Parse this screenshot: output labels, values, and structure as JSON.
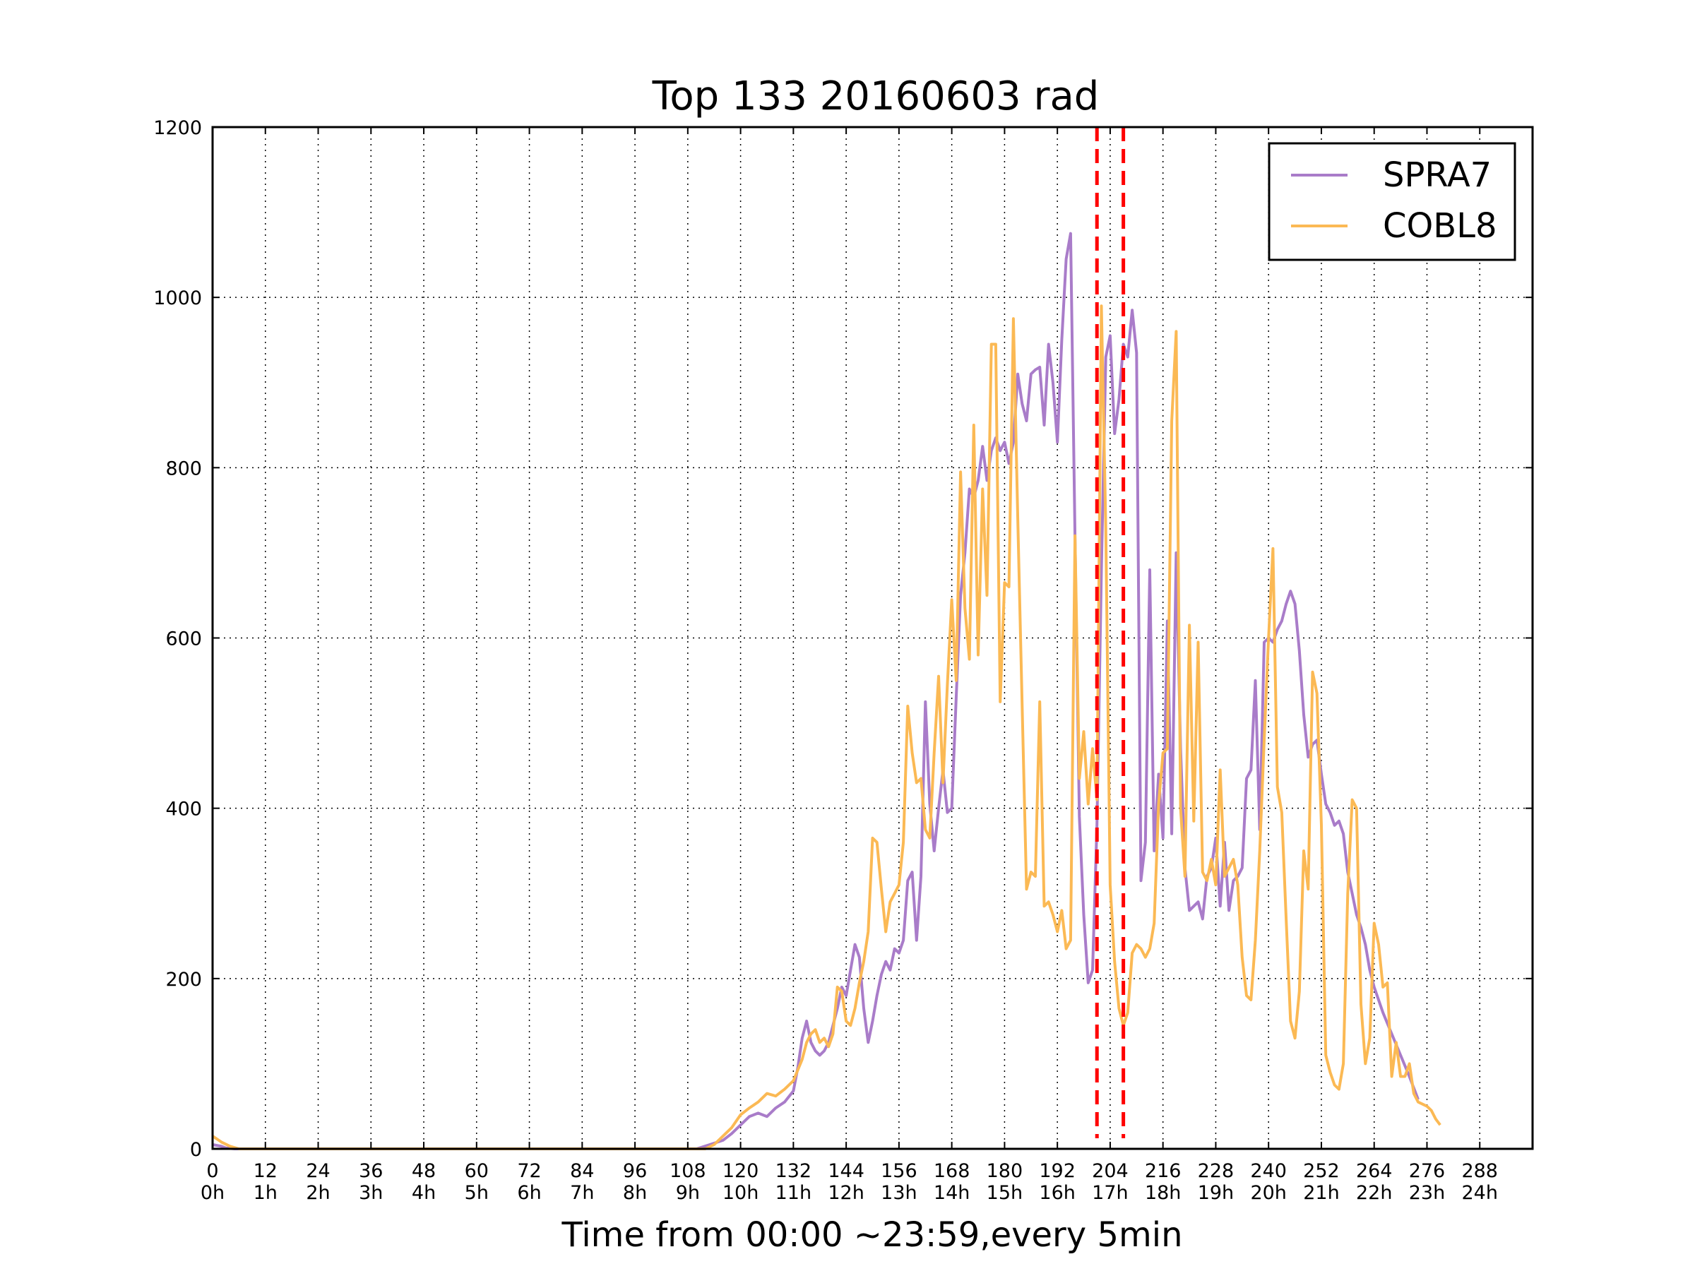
{
  "chart_data": {
    "type": "line",
    "title": "Top 133 20160603 rad",
    "xlabel": "Time from 00:00 ~23:59,every 5min",
    "ylabel": "",
    "xlim": [
      0,
      300
    ],
    "ylim": [
      0,
      1200
    ],
    "grid": true,
    "legend_position": "top-right",
    "x_ticks": [
      0,
      12,
      24,
      36,
      48,
      60,
      72,
      84,
      96,
      108,
      120,
      132,
      144,
      156,
      168,
      180,
      192,
      204,
      216,
      228,
      240,
      252,
      264,
      276,
      288
    ],
    "x_tick_labels": [
      "0",
      "12",
      "24",
      "36",
      "48",
      "60",
      "72",
      "84",
      "96",
      "108",
      "120",
      "132",
      "144",
      "156",
      "168",
      "180",
      "192",
      "204",
      "216",
      "228",
      "240",
      "252",
      "264",
      "276",
      "288"
    ],
    "x_tick_sublabels": [
      "0h",
      "1h",
      "2h",
      "3h",
      "4h",
      "5h",
      "6h",
      "7h",
      "8h",
      "9h",
      "10h",
      "11h",
      "12h",
      "13h",
      "14h",
      "15h",
      "16h",
      "17h",
      "18h",
      "19h",
      "20h",
      "21h",
      "22h",
      "23h",
      "24h"
    ],
    "y_ticks": [
      0,
      200,
      400,
      600,
      800,
      1000,
      1200
    ],
    "y_tick_labels": [
      "0",
      "200",
      "400",
      "600",
      "800",
      "1000",
      "1200"
    ],
    "vlines": [
      {
        "x": 201,
        "color": "#ff0000"
      },
      {
        "x": 207,
        "color": "#ff0000"
      }
    ],
    "series": [
      {
        "name": "SPRA7",
        "color": "#a97cc9",
        "points": [
          [
            0,
            5
          ],
          [
            2,
            3
          ],
          [
            3,
            1
          ],
          [
            5,
            0
          ],
          [
            110,
            0
          ],
          [
            113,
            5
          ],
          [
            116,
            10
          ],
          [
            118,
            18
          ],
          [
            120,
            28
          ],
          [
            122,
            38
          ],
          [
            124,
            42
          ],
          [
            126,
            38
          ],
          [
            128,
            48
          ],
          [
            130,
            55
          ],
          [
            132,
            68
          ],
          [
            133,
            95
          ],
          [
            134,
            130
          ],
          [
            135,
            150
          ],
          [
            136,
            125
          ],
          [
            137,
            115
          ],
          [
            138,
            110
          ],
          [
            139,
            115
          ],
          [
            140,
            125
          ],
          [
            141,
            145
          ],
          [
            142,
            165
          ],
          [
            143,
            190
          ],
          [
            144,
            180
          ],
          [
            145,
            210
          ],
          [
            146,
            240
          ],
          [
            147,
            225
          ],
          [
            148,
            165
          ],
          [
            149,
            125
          ],
          [
            150,
            150
          ],
          [
            151,
            180
          ],
          [
            152,
            205
          ],
          [
            153,
            220
          ],
          [
            154,
            210
          ],
          [
            155,
            235
          ],
          [
            156,
            230
          ],
          [
            157,
            245
          ],
          [
            158,
            315
          ],
          [
            159,
            325
          ],
          [
            160,
            245
          ],
          [
            161,
            320
          ],
          [
            162,
            525
          ],
          [
            163,
            405
          ],
          [
            164,
            350
          ],
          [
            165,
            400
          ],
          [
            166,
            445
          ],
          [
            167,
            395
          ],
          [
            168,
            400
          ],
          [
            169,
            530
          ],
          [
            170,
            650
          ],
          [
            171,
            700
          ],
          [
            172,
            775
          ],
          [
            173,
            765
          ],
          [
            174,
            785
          ],
          [
            175,
            825
          ],
          [
            176,
            785
          ],
          [
            177,
            820
          ],
          [
            178,
            835
          ],
          [
            179,
            820
          ],
          [
            180,
            830
          ],
          [
            181,
            805
          ],
          [
            182,
            830
          ],
          [
            183,
            910
          ],
          [
            184,
            875
          ],
          [
            185,
            855
          ],
          [
            186,
            910
          ],
          [
            187,
            915
          ],
          [
            188,
            918
          ],
          [
            189,
            850
          ],
          [
            190,
            945
          ],
          [
            191,
            900
          ],
          [
            192,
            830
          ],
          [
            193,
            950
          ],
          [
            194,
            1045
          ],
          [
            195,
            1075
          ],
          [
            196,
            720
          ],
          [
            197,
            390
          ],
          [
            198,
            275
          ],
          [
            199,
            195
          ],
          [
            200,
            210
          ],
          [
            201,
            380
          ],
          [
            202,
            680
          ],
          [
            203,
            930
          ],
          [
            204,
            955
          ],
          [
            205,
            840
          ],
          [
            206,
            880
          ],
          [
            207,
            945
          ],
          [
            208,
            930
          ],
          [
            209,
            985
          ],
          [
            210,
            935
          ],
          [
            211,
            315
          ],
          [
            212,
            360
          ],
          [
            213,
            680
          ],
          [
            214,
            350
          ],
          [
            215,
            440
          ],
          [
            216,
            365
          ],
          [
            217,
            620
          ],
          [
            218,
            370
          ],
          [
            219,
            700
          ],
          [
            220,
            470
          ],
          [
            221,
            330
          ],
          [
            222,
            280
          ],
          [
            223,
            285
          ],
          [
            224,
            290
          ],
          [
            225,
            270
          ],
          [
            226,
            320
          ],
          [
            227,
            330
          ],
          [
            228,
            365
          ],
          [
            229,
            285
          ],
          [
            230,
            360
          ],
          [
            231,
            280
          ],
          [
            232,
            315
          ],
          [
            233,
            320
          ],
          [
            234,
            330
          ],
          [
            235,
            435
          ],
          [
            236,
            445
          ],
          [
            237,
            550
          ],
          [
            238,
            375
          ],
          [
            239,
            595
          ],
          [
            240,
            600
          ],
          [
            241,
            595
          ],
          [
            242,
            610
          ],
          [
            243,
            620
          ],
          [
            244,
            640
          ],
          [
            245,
            655
          ],
          [
            246,
            640
          ],
          [
            247,
            585
          ],
          [
            248,
            510
          ],
          [
            249,
            460
          ],
          [
            250,
            475
          ],
          [
            251,
            480
          ],
          [
            252,
            440
          ],
          [
            253,
            405
          ],
          [
            254,
            395
          ],
          [
            255,
            380
          ],
          [
            256,
            385
          ],
          [
            257,
            370
          ],
          [
            258,
            325
          ],
          [
            259,
            300
          ],
          [
            260,
            275
          ],
          [
            261,
            260
          ],
          [
            262,
            240
          ],
          [
            263,
            210
          ],
          [
            264,
            190
          ],
          [
            266,
            160
          ],
          [
            268,
            135
          ],
          [
            270,
            110
          ],
          [
            272,
            85
          ],
          [
            274,
            58
          ]
        ]
      },
      {
        "name": "COBL8",
        "color": "#fbb954",
        "points": [
          [
            0,
            15
          ],
          [
            2,
            8
          ],
          [
            4,
            3
          ],
          [
            6,
            0
          ],
          [
            112,
            0
          ],
          [
            114,
            5
          ],
          [
            116,
            15
          ],
          [
            118,
            25
          ],
          [
            120,
            40
          ],
          [
            122,
            48
          ],
          [
            124,
            55
          ],
          [
            126,
            65
          ],
          [
            128,
            62
          ],
          [
            130,
            70
          ],
          [
            132,
            80
          ],
          [
            134,
            105
          ],
          [
            135,
            125
          ],
          [
            136,
            135
          ],
          [
            137,
            140
          ],
          [
            138,
            125
          ],
          [
            139,
            130
          ],
          [
            140,
            120
          ],
          [
            141,
            135
          ],
          [
            142,
            190
          ],
          [
            143,
            185
          ],
          [
            144,
            150
          ],
          [
            145,
            145
          ],
          [
            146,
            165
          ],
          [
            147,
            195
          ],
          [
            148,
            220
          ],
          [
            149,
            255
          ],
          [
            150,
            365
          ],
          [
            151,
            360
          ],
          [
            152,
            305
          ],
          [
            153,
            255
          ],
          [
            154,
            290
          ],
          [
            155,
            300
          ],
          [
            156,
            310
          ],
          [
            157,
            360
          ],
          [
            158,
            520
          ],
          [
            159,
            465
          ],
          [
            160,
            430
          ],
          [
            161,
            435
          ],
          [
            162,
            375
          ],
          [
            163,
            365
          ],
          [
            164,
            465
          ],
          [
            165,
            555
          ],
          [
            166,
            430
          ],
          [
            167,
            545
          ],
          [
            168,
            645
          ],
          [
            169,
            550
          ],
          [
            170,
            795
          ],
          [
            171,
            635
          ],
          [
            172,
            575
          ],
          [
            173,
            850
          ],
          [
            174,
            580
          ],
          [
            175,
            775
          ],
          [
            176,
            650
          ],
          [
            177,
            945
          ],
          [
            178,
            945
          ],
          [
            179,
            525
          ],
          [
            180,
            665
          ],
          [
            181,
            660
          ],
          [
            182,
            975
          ],
          [
            183,
            740
          ],
          [
            184,
            520
          ],
          [
            185,
            305
          ],
          [
            186,
            325
          ],
          [
            187,
            320
          ],
          [
            188,
            525
          ],
          [
            189,
            285
          ],
          [
            190,
            290
          ],
          [
            191,
            275
          ],
          [
            192,
            255
          ],
          [
            193,
            280
          ],
          [
            194,
            235
          ],
          [
            195,
            245
          ],
          [
            196,
            720
          ],
          [
            197,
            435
          ],
          [
            198,
            490
          ],
          [
            199,
            405
          ],
          [
            200,
            470
          ],
          [
            201,
            410
          ],
          [
            202,
            990
          ],
          [
            203,
            730
          ],
          [
            204,
            310
          ],
          [
            205,
            220
          ],
          [
            206,
            165
          ],
          [
            207,
            145
          ],
          [
            208,
            160
          ],
          [
            209,
            230
          ],
          [
            210,
            240
          ],
          [
            211,
            235
          ],
          [
            212,
            225
          ],
          [
            213,
            235
          ],
          [
            214,
            265
          ],
          [
            215,
            405
          ],
          [
            216,
            465
          ],
          [
            217,
            470
          ],
          [
            218,
            855
          ],
          [
            219,
            960
          ],
          [
            220,
            400
          ],
          [
            221,
            320
          ],
          [
            222,
            615
          ],
          [
            223,
            385
          ],
          [
            224,
            595
          ],
          [
            225,
            325
          ],
          [
            226,
            315
          ],
          [
            227,
            340
          ],
          [
            228,
            310
          ],
          [
            229,
            445
          ],
          [
            230,
            320
          ],
          [
            231,
            330
          ],
          [
            232,
            340
          ],
          [
            233,
            310
          ],
          [
            234,
            225
          ],
          [
            235,
            180
          ],
          [
            236,
            175
          ],
          [
            237,
            245
          ],
          [
            238,
            350
          ],
          [
            239,
            480
          ],
          [
            240,
            600
          ],
          [
            241,
            705
          ],
          [
            242,
            425
          ],
          [
            243,
            395
          ],
          [
            244,
            270
          ],
          [
            245,
            150
          ],
          [
            246,
            130
          ],
          [
            247,
            185
          ],
          [
            248,
            350
          ],
          [
            249,
            305
          ],
          [
            250,
            560
          ],
          [
            251,
            535
          ],
          [
            252,
            380
          ],
          [
            253,
            110
          ],
          [
            254,
            90
          ],
          [
            255,
            75
          ],
          [
            256,
            70
          ],
          [
            257,
            100
          ],
          [
            258,
            300
          ],
          [
            259,
            410
          ],
          [
            260,
            400
          ],
          [
            261,
            170
          ],
          [
            262,
            100
          ],
          [
            263,
            130
          ],
          [
            264,
            265
          ],
          [
            265,
            240
          ],
          [
            266,
            190
          ],
          [
            267,
            195
          ],
          [
            268,
            85
          ],
          [
            269,
            125
          ],
          [
            270,
            85
          ],
          [
            271,
            85
          ],
          [
            272,
            100
          ],
          [
            273,
            65
          ],
          [
            274,
            55
          ],
          [
            276,
            50
          ],
          [
            277,
            45
          ],
          [
            278,
            35
          ],
          [
            279,
            28
          ]
        ]
      }
    ]
  }
}
